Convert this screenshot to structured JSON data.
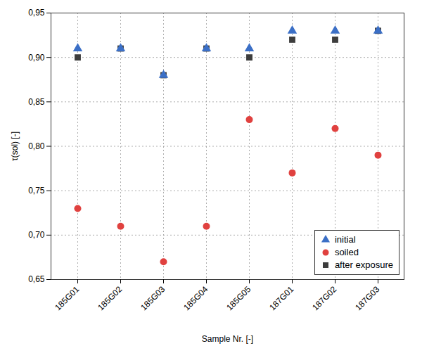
{
  "chart_data": {
    "type": "scatter",
    "x_label": "Sample Nr. [-]",
    "y_label": "τ(sol) [-]",
    "categories": [
      "185G01",
      "185G02",
      "185G03",
      "185G04",
      "185G05",
      "187G01",
      "187G02",
      "187G03"
    ],
    "series": [
      {
        "name": "initial",
        "color": "#3b6fc6",
        "marker": "triangle",
        "values": [
          0.91,
          0.91,
          0.88,
          0.91,
          0.91,
          0.93,
          0.93,
          0.93
        ]
      },
      {
        "name": "soiled",
        "color": "#e0413f",
        "marker": "circle",
        "values": [
          0.73,
          0.71,
          0.67,
          0.71,
          0.83,
          0.77,
          0.82,
          0.79
        ]
      },
      {
        "name": "after exposure",
        "color": "#3d3d3d",
        "marker": "square",
        "values": [
          0.9,
          0.91,
          0.88,
          0.91,
          0.9,
          0.92,
          0.92,
          0.93
        ]
      }
    ],
    "ylim": [
      0.65,
      0.95
    ],
    "yticks": [
      {
        "value": 0.65,
        "label": "0,65"
      },
      {
        "value": 0.7,
        "label": "0,70"
      },
      {
        "value": 0.75,
        "label": "0,75"
      },
      {
        "value": 0.8,
        "label": "0,80"
      },
      {
        "value": 0.85,
        "label": "0,85"
      },
      {
        "value": 0.9,
        "label": "0,90"
      },
      {
        "value": 0.95,
        "label": "0,95"
      }
    ],
    "grid": true,
    "legend": "lower right"
  }
}
